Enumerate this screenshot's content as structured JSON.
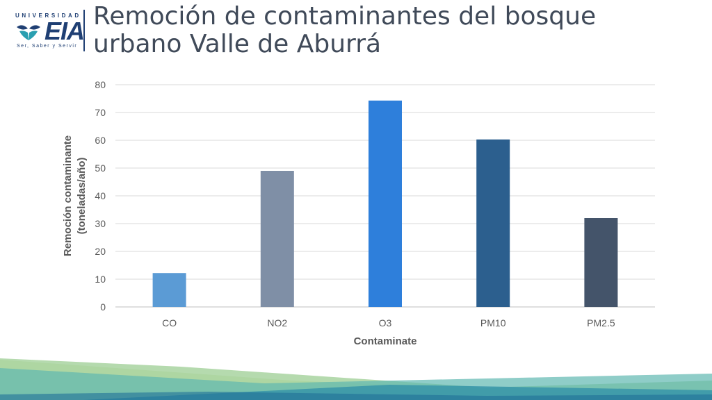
{
  "slide": {
    "title_line1": "Remoción de contaminantes del bosque",
    "title_line2": "urbano Valle de Aburrá"
  },
  "logo": {
    "top_text": "UNIVERSIDAD",
    "main_text": "EIA",
    "tagline": "Ser, Saber y Servir",
    "color": "#1f3f73"
  },
  "chart_data": {
    "type": "bar",
    "categories": [
      "CO",
      "NO2",
      "O3",
      "PM10",
      "PM2.5"
    ],
    "values": [
      12.2,
      49,
      74.3,
      60.3,
      32
    ],
    "colors": [
      "#5b9bd5",
      "#7f8fa6",
      "#2e7fdb",
      "#2c5f8e",
      "#44546a"
    ],
    "xlabel": "Contaminate",
    "ylabel_line1": "Remoción contaminante",
    "ylabel_line2": "(toneladas/año)",
    "ylim": [
      0,
      80
    ],
    "yticks": [
      0,
      10,
      20,
      30,
      40,
      50,
      60,
      70,
      80
    ],
    "grid": true
  }
}
